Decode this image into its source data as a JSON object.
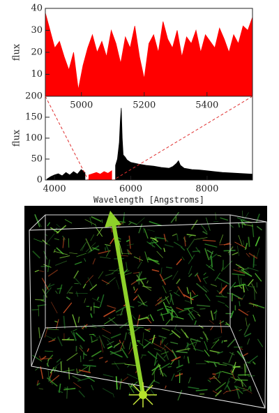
{
  "chart_data": [
    {
      "type": "area",
      "color": "#ff0000",
      "ylabel": "flux",
      "x": [
        4885,
        4900,
        4915,
        4930,
        4945,
        4960,
        4975,
        4990,
        5005,
        5020,
        5035,
        5050,
        5065,
        5080,
        5095,
        5110,
        5125,
        5140,
        5155,
        5170,
        5185,
        5200,
        5215,
        5230,
        5245,
        5260,
        5275,
        5290,
        5305,
        5320,
        5335,
        5350,
        5365,
        5380,
        5395,
        5410,
        5425,
        5440,
        5455,
        5470,
        5485,
        5500,
        5515,
        5530,
        5545
      ],
      "values": [
        38,
        30,
        22,
        25,
        18,
        12,
        20,
        3,
        14,
        22,
        28,
        20,
        25,
        18,
        30,
        24,
        15,
        27,
        22,
        32,
        18,
        8,
        24,
        28,
        20,
        34,
        26,
        22,
        30,
        18,
        27,
        24,
        30,
        20,
        28,
        25,
        22,
        31,
        26,
        20,
        28,
        24,
        32,
        30,
        36
      ],
      "xlim": [
        4885,
        5545
      ],
      "ylim": [
        0,
        40
      ],
      "xticks": [
        5000,
        5200,
        5400
      ],
      "yticks": [
        10,
        20,
        30,
        40
      ]
    },
    {
      "type": "area",
      "color": "#000000",
      "xlabel": "Wavelength [Angstroms]",
      "ylabel": "flux",
      "x": [
        3800,
        3900,
        4000,
        4100,
        4200,
        4300,
        4400,
        4500,
        4600,
        4700,
        4800,
        4900,
        5000,
        5100,
        5200,
        5300,
        5400,
        5500,
        5600,
        5650,
        5700,
        5725,
        5750,
        5775,
        5800,
        5850,
        5900,
        6000,
        6200,
        6400,
        6600,
        6800,
        7000,
        7100,
        7200,
        7250,
        7300,
        7400,
        7600,
        7800,
        8000,
        8200,
        8400,
        8600,
        8800,
        9000,
        9190
      ],
      "values": [
        2,
        8,
        12,
        15,
        10,
        18,
        12,
        20,
        14,
        25,
        18,
        12,
        15,
        18,
        14,
        20,
        16,
        22,
        35,
        50,
        90,
        140,
        172,
        100,
        60,
        55,
        48,
        42,
        38,
        35,
        33,
        30,
        28,
        32,
        40,
        46,
        35,
        28,
        25,
        24,
        22,
        20,
        18,
        17,
        16,
        15,
        14
      ],
      "xlim": [
        3760,
        9190
      ],
      "ylim": [
        0,
        200
      ],
      "xticks": [
        4000,
        6000,
        8000
      ],
      "yticks": [
        0,
        50,
        100,
        150,
        200
      ]
    }
  ]
}
